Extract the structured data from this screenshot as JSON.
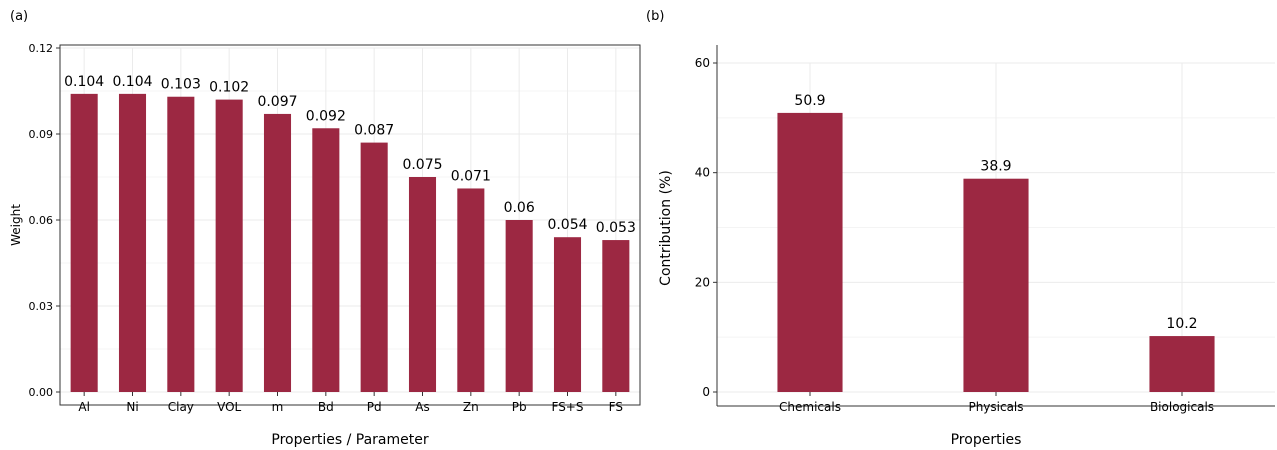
{
  "chart_data": [
    {
      "type": "bar",
      "panel_label": "(a)",
      "title": "",
      "xlabel": "Properties / Parameter",
      "ylabel": "Weight",
      "ylim": [
        0,
        0.12
      ],
      "yticks": [
        "0.00",
        "0.03",
        "0.06",
        "0.09",
        "0.12"
      ],
      "categories": [
        "Al",
        "Ni",
        "Clay",
        "VOL",
        "m",
        "Bd",
        "Pd",
        "As",
        "Zn",
        "Pb",
        "FS+S",
        "FS"
      ],
      "values": [
        0.104,
        0.104,
        0.103,
        0.102,
        0.097,
        0.092,
        0.087,
        0.075,
        0.071,
        0.06,
        0.054,
        0.053
      ],
      "data_labels": [
        "0.104",
        "0.104",
        "0.103",
        "0.102",
        "0.097",
        "0.092",
        "0.087",
        "0.075",
        "0.071",
        "0.06",
        "0.054",
        "0.053"
      ],
      "grid": true,
      "bar_color": "#9c2842"
    },
    {
      "type": "bar",
      "panel_label": "(b)",
      "title": "",
      "xlabel": "Properties",
      "ylabel": "Contribution (%)",
      "ylim": [
        0,
        60
      ],
      "yticks": [
        "0",
        "20",
        "40",
        "60"
      ],
      "categories": [
        "Chemicals",
        "Physicals",
        "Biologicals"
      ],
      "values": [
        50.9,
        38.9,
        10.2
      ],
      "data_labels": [
        "50.9",
        "38.9",
        "10.2"
      ],
      "grid": true,
      "bar_color": "#9c2842"
    }
  ]
}
